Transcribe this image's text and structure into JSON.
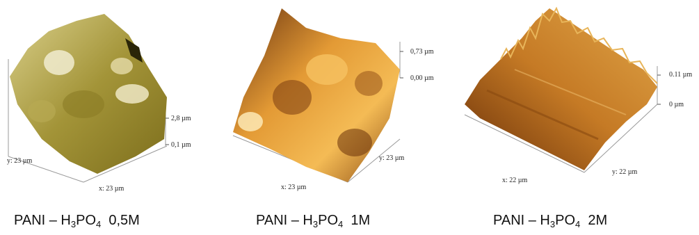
{
  "panels": [
    {
      "z_top": "2,8 µm",
      "z_bottom": "0,1 µm",
      "y_label": "y: 23 µm",
      "x_label": "x: 23 µm",
      "caption": [
        "PANI – H",
        "3",
        "PO",
        "4",
        "  0,5M"
      ]
    },
    {
      "z_top": "0,73 µm",
      "z_bottom": "0,00 µm",
      "y_label": "y: 23 µm",
      "x_label": "x: 23 µm",
      "caption": [
        "PANI – H",
        "3",
        "PO",
        "4",
        "  1M"
      ]
    },
    {
      "z_top": "0.11 µm",
      "z_bottom": "0 µm",
      "y_label": "y: 22 µm",
      "x_label": "x: 22 µm",
      "caption": [
        "PANI – H",
        "3",
        "PO",
        "4",
        "  2M"
      ]
    }
  ]
}
